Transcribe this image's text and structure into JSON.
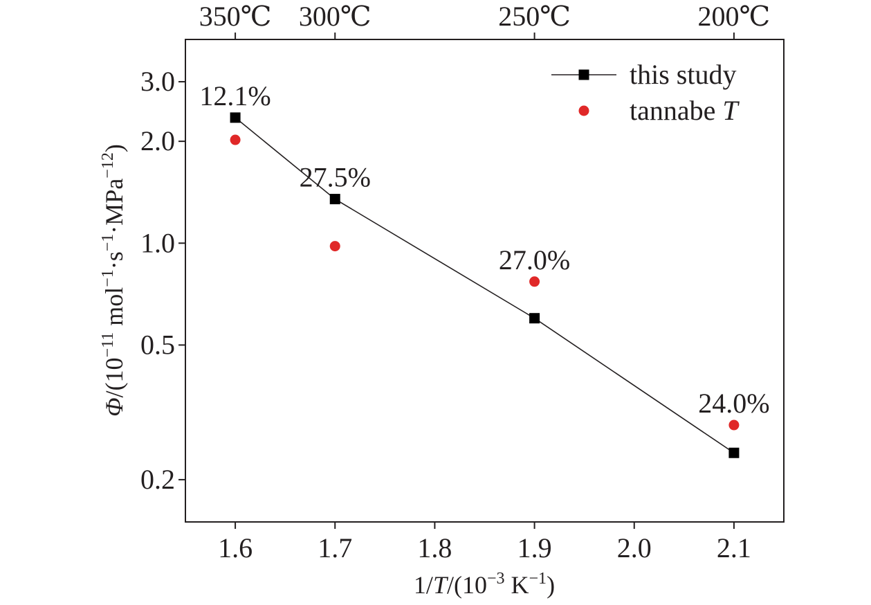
{
  "chart_data": {
    "type": "scatter",
    "xlabel": {
      "pre": "1/",
      "italic": "T",
      "post": "/(10",
      "sup1": "−3",
      "mid": " K",
      "sup2": "−1",
      "end": ")"
    },
    "ylabel": {
      "italic": "Φ",
      "p1": "/(10",
      "s1": "−11",
      "p2": " mol",
      "s2": "−1",
      "p3": "·s",
      "s3": "−1",
      "p4": "·MPa",
      "s4": "−12",
      "p5": ")"
    },
    "xlim": [
      1.55,
      2.15
    ],
    "ylim": [
      0.15,
      4.0
    ],
    "yscale": "log",
    "x_ticks": [
      1.6,
      1.7,
      1.8,
      1.9,
      2.0,
      2.1
    ],
    "x_tick_labels": [
      "1.6",
      "1.7",
      "1.8",
      "1.9",
      "2.0",
      "2.1"
    ],
    "y_ticks": [
      0.2,
      0.5,
      1.0,
      2.0,
      3.0
    ],
    "y_tick_labels": [
      "0.2",
      "0.5",
      "1.0",
      "2.0",
      "3.0"
    ],
    "top_axis": {
      "positions": [
        1.6,
        1.7,
        1.9,
        2.1
      ],
      "labels": [
        "350℃",
        "300℃",
        "250℃",
        "200℃"
      ]
    },
    "legend_position": "top-right",
    "grid": false,
    "series": [
      {
        "name": "this study",
        "marker": "square",
        "line": true,
        "color": "#000000",
        "x": [
          1.6,
          1.7,
          1.9,
          2.1
        ],
        "y": [
          2.35,
          1.35,
          0.6,
          0.24
        ]
      },
      {
        "name": "tannabe T",
        "name_text": "tannabe ",
        "name_italic": "T",
        "marker": "circle",
        "line": false,
        "color": "#e02828",
        "x": [
          1.6,
          1.7,
          1.9,
          2.1
        ],
        "y": [
          2.02,
          0.98,
          0.77,
          0.29
        ]
      }
    ],
    "annotations": [
      {
        "text": "12.1%",
        "x": 1.6,
        "y": 2.35
      },
      {
        "text": "27.5%",
        "x": 1.7,
        "y": 1.35
      },
      {
        "text": "27.0%",
        "x": 1.9,
        "y": 0.77
      },
      {
        "text": "24.0%",
        "x": 2.1,
        "y": 0.29
      }
    ]
  }
}
